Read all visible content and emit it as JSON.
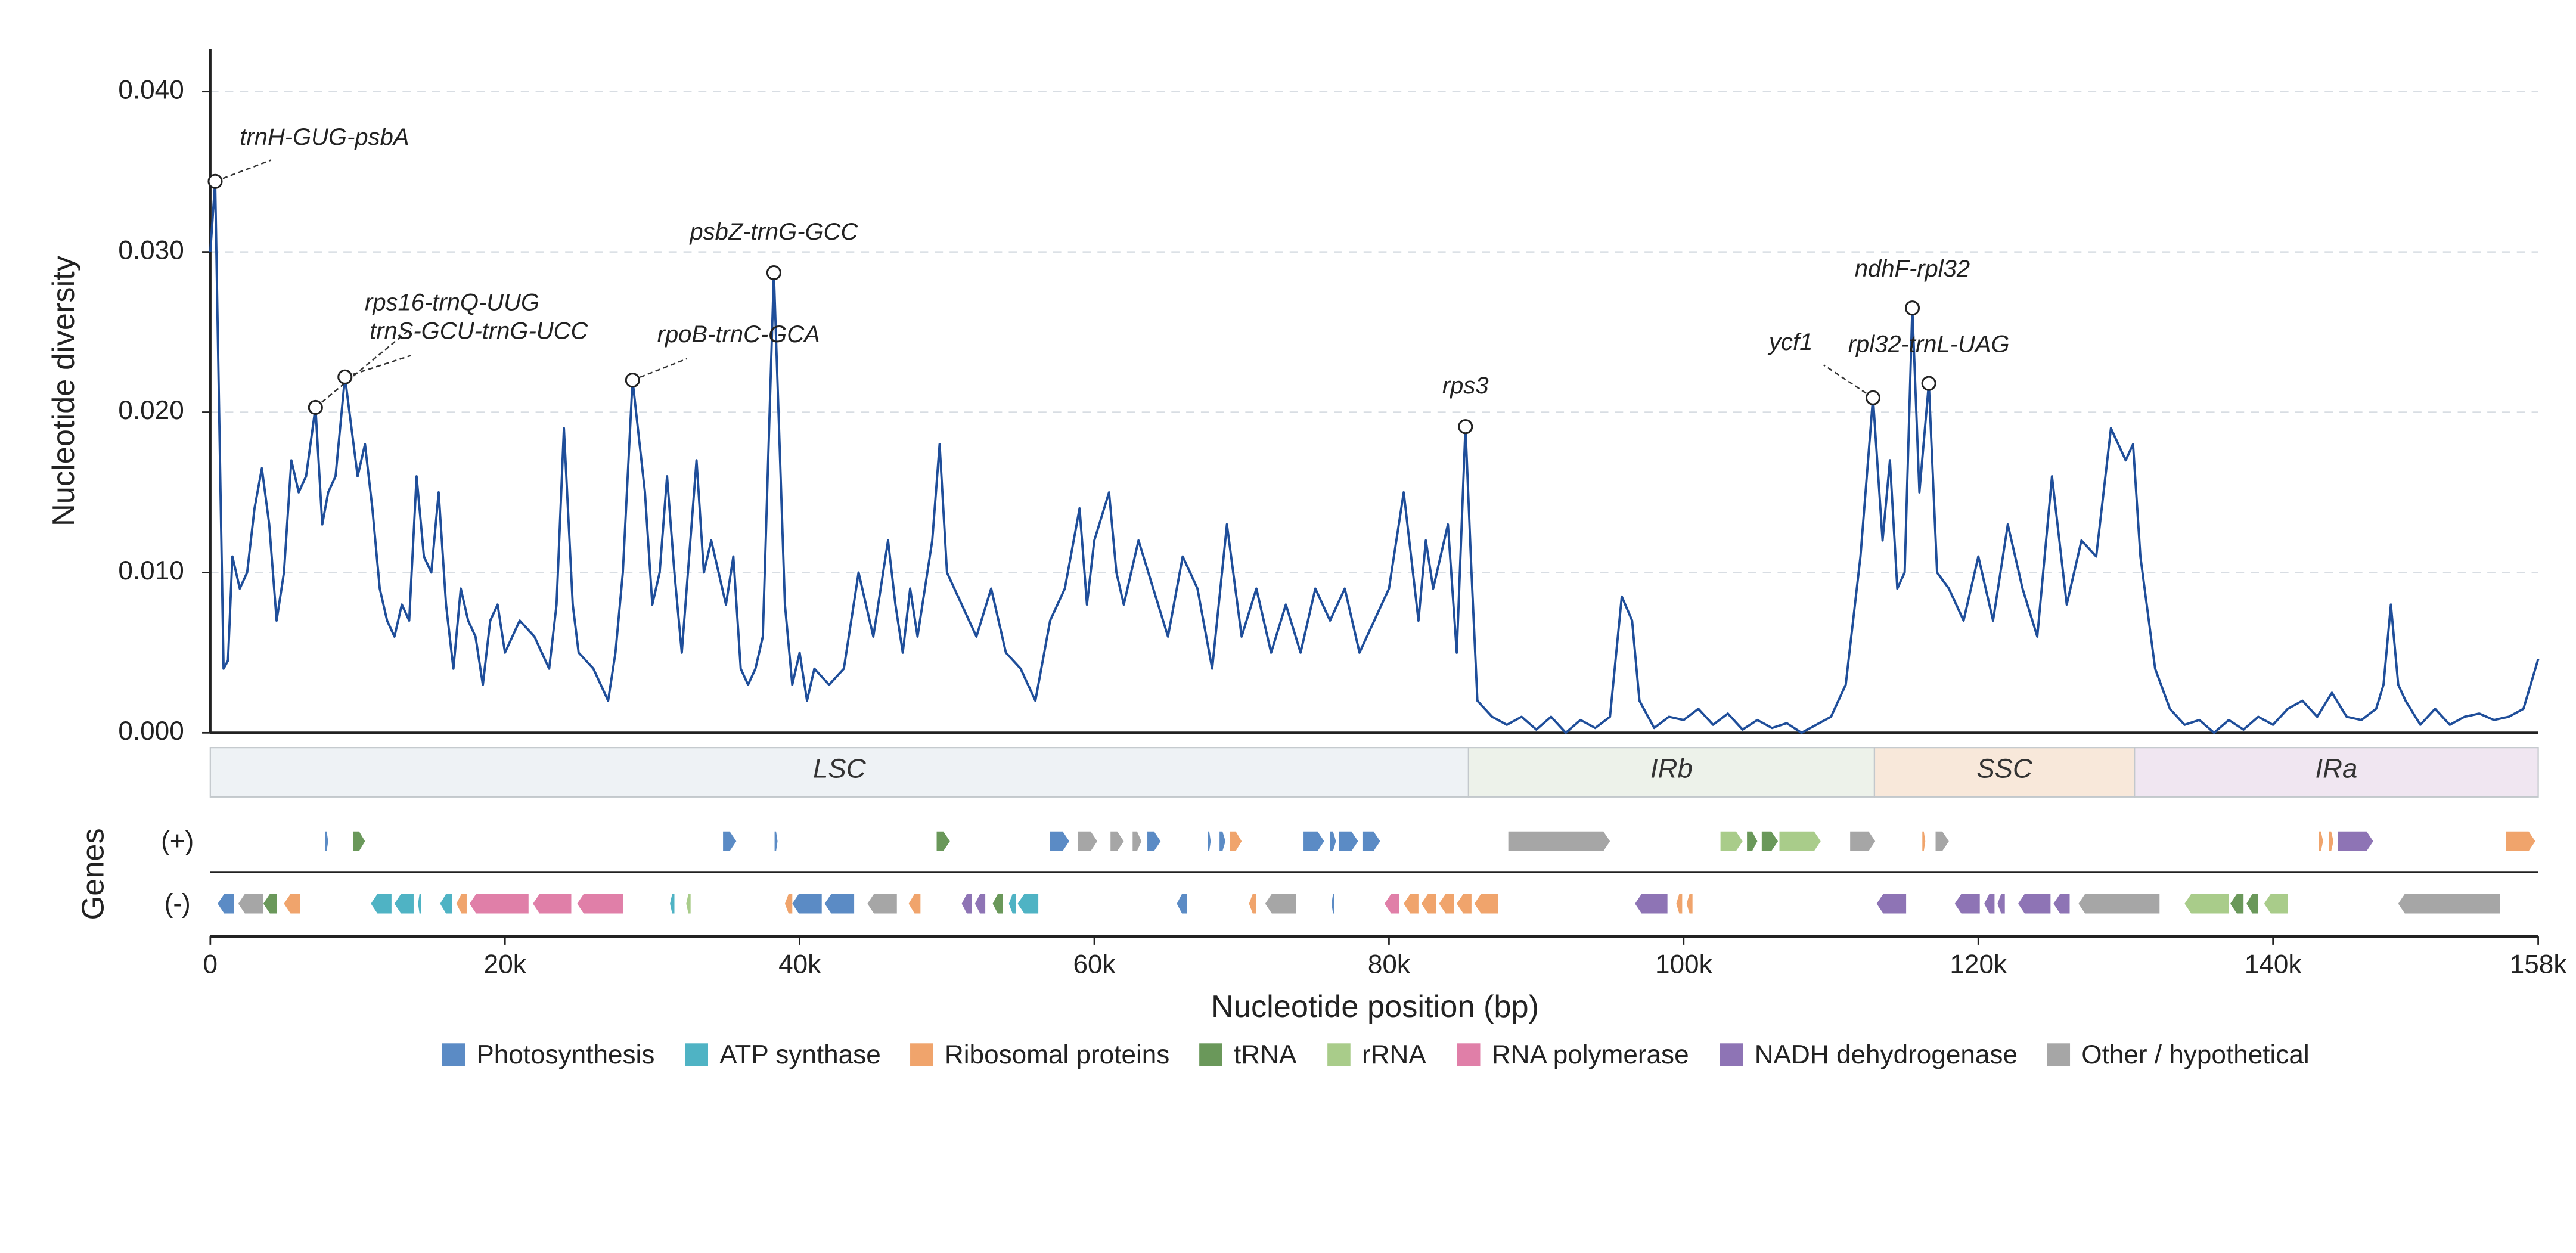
{
  "chart_data": {
    "type": "line",
    "ylabel": "Nucleotide diversity",
    "xlabel": "Nucleotide position (bp)",
    "xlim": [
      0,
      158000
    ],
    "ylim": [
      0,
      0.041
    ],
    "xticks": [
      {
        "value": 0,
        "label": "0"
      },
      {
        "value": 20000,
        "label": "20k"
      },
      {
        "value": 40000,
        "label": "40k"
      },
      {
        "value": 60000,
        "label": "60k"
      },
      {
        "value": 80000,
        "label": "80k"
      },
      {
        "value": 100000,
        "label": "100k"
      },
      {
        "value": 120000,
        "label": "120k"
      },
      {
        "value": 140000,
        "label": "140k"
      },
      {
        "value": 158000,
        "label": "158k"
      }
    ],
    "yticks": [
      {
        "value": 0,
        "label": "0.000"
      },
      {
        "value": 0.01,
        "label": "0.010"
      },
      {
        "value": 0.02,
        "label": "0.020"
      },
      {
        "value": 0.03,
        "label": "0.030"
      },
      {
        "value": 0.04,
        "label": "0.040"
      }
    ],
    "grid": true,
    "color": "#1f4e9a",
    "x": [
      0,
      330,
      900,
      1200,
      1500,
      2000,
      2500,
      3000,
      3500,
      4000,
      4500,
      5000,
      5500,
      6000,
      6500,
      7140,
      7600,
      8000,
      8500,
      9140,
      10000,
      10500,
      11000,
      11500,
      12000,
      12500,
      13000,
      13500,
      14000,
      14500,
      15000,
      15500,
      16000,
      16500,
      17000,
      17500,
      18000,
      18500,
      19000,
      19500,
      20000,
      21000,
      22000,
      23000,
      23500,
      24000,
      24600,
      25000,
      26000,
      27000,
      27500,
      28000,
      28660,
      29500,
      30000,
      30500,
      31000,
      31500,
      32000,
      33000,
      33500,
      34000,
      35000,
      35500,
      36000,
      36500,
      37000,
      37500,
      38250,
      39000,
      39500,
      40000,
      40500,
      41000,
      42000,
      43000,
      44000,
      45000,
      46000,
      46500,
      47000,
      47500,
      48000,
      49000,
      49500,
      50000,
      51000,
      52000,
      53000,
      54000,
      55000,
      56000,
      57000,
      58000,
      59000,
      59500,
      60000,
      61000,
      61500,
      62000,
      63000,
      64000,
      65000,
      66000,
      67000,
      68000,
      69000,
      70000,
      71000,
      72000,
      73000,
      74000,
      75000,
      76000,
      77000,
      78000,
      79000,
      80000,
      81000,
      82000,
      82500,
      83000,
      84000,
      84600,
      85190,
      85600,
      86000,
      87000,
      88000,
      89000,
      90000,
      91000,
      92000,
      93000,
      94000,
      95000,
      95800,
      96500,
      97000,
      98000,
      99000,
      100000,
      101000,
      102000,
      103000,
      104000,
      105000,
      106000,
      107000,
      108000,
      109000,
      110000,
      111000,
      112000,
      112850,
      113500,
      114000,
      114500,
      115000,
      115520,
      116000,
      116640,
      117200,
      118000,
      119000,
      120000,
      121000,
      122000,
      123000,
      124000,
      125000,
      126000,
      127000,
      128000,
      129000,
      130000,
      130500,
      131000,
      132000,
      133000,
      134000,
      135000,
      136000,
      137000,
      138000,
      139000,
      140000,
      141000,
      142000,
      143000,
      144000,
      145000,
      146000,
      147000,
      147500,
      148000,
      148500,
      149000,
      150000,
      151000,
      152000,
      153000,
      154000,
      155000,
      156000,
      157000,
      158000
    ],
    "values": [
      0.03,
      0.0344,
      0.004,
      0.0045,
      0.011,
      0.009,
      0.01,
      0.014,
      0.0165,
      0.013,
      0.007,
      0.01,
      0.017,
      0.015,
      0.016,
      0.0203,
      0.013,
      0.015,
      0.016,
      0.0222,
      0.016,
      0.018,
      0.014,
      0.009,
      0.007,
      0.006,
      0.008,
      0.007,
      0.016,
      0.011,
      0.01,
      0.015,
      0.008,
      0.004,
      0.009,
      0.007,
      0.006,
      0.003,
      0.007,
      0.008,
      0.005,
      0.007,
      0.006,
      0.004,
      0.008,
      0.019,
      0.008,
      0.005,
      0.004,
      0.002,
      0.005,
      0.01,
      0.022,
      0.015,
      0.008,
      0.01,
      0.016,
      0.01,
      0.005,
      0.017,
      0.01,
      0.012,
      0.008,
      0.011,
      0.004,
      0.003,
      0.004,
      0.006,
      0.0287,
      0.008,
      0.003,
      0.005,
      0.002,
      0.004,
      0.003,
      0.004,
      0.01,
      0.006,
      0.012,
      0.008,
      0.005,
      0.009,
      0.006,
      0.012,
      0.018,
      0.01,
      0.008,
      0.006,
      0.009,
      0.005,
      0.004,
      0.002,
      0.007,
      0.009,
      0.014,
      0.008,
      0.012,
      0.015,
      0.01,
      0.008,
      0.012,
      0.009,
      0.006,
      0.011,
      0.009,
      0.004,
      0.013,
      0.006,
      0.009,
      0.005,
      0.008,
      0.005,
      0.009,
      0.007,
      0.009,
      0.005,
      0.007,
      0.009,
      0.015,
      0.007,
      0.012,
      0.009,
      0.013,
      0.005,
      0.0191,
      0.01,
      0.002,
      0.001,
      0.0005,
      0.001,
      0.0002,
      0.001,
      0,
      0.0008,
      0.0003,
      0.001,
      0.0085,
      0.007,
      0.002,
      0.0003,
      0.001,
      0.0008,
      0.0015,
      0.0005,
      0.0012,
      0.0002,
      0.0008,
      0.0003,
      0.0006,
      0,
      0.0005,
      0.001,
      0.003,
      0.011,
      0.0209,
      0.012,
      0.017,
      0.009,
      0.01,
      0.0265,
      0.015,
      0.0218,
      0.01,
      0.009,
      0.007,
      0.011,
      0.007,
      0.013,
      0.009,
      0.006,
      0.016,
      0.008,
      0.012,
      0.011,
      0.019,
      0.017,
      0.018,
      0.011,
      0.004,
      0.0015,
      0.0005,
      0.0008,
      0,
      0.0008,
      0.0002,
      0.001,
      0.0005,
      0.0015,
      0.002,
      0.001,
      0.0025,
      0.001,
      0.0008,
      0.0015,
      0.003,
      0.008,
      0.003,
      0.002,
      0.0005,
      0.0015,
      0.0005,
      0.001,
      0.0012,
      0.0008,
      0.001,
      0.0015,
      0.0046
    ],
    "annotations": [
      {
        "text": "trnH-GUG-psbA",
        "x": 330,
        "y": 0.0344
      },
      {
        "text": "rps16-trnQ-UUG",
        "x": 7140,
        "y": 0.0203
      },
      {
        "text": "trnS-GCU-trnG-UCC",
        "x": 9140,
        "y": 0.0222
      },
      {
        "text": "psbZ-trnG-GCC",
        "x": 38250,
        "y": 0.0287
      },
      {
        "text": "rpoB-trnC-GCA",
        "x": 28660,
        "y": 0.022
      },
      {
        "text": "rps3",
        "x": 85190,
        "y": 0.0191
      },
      {
        "text": "ycf1",
        "x": 112850,
        "y": 0.0209
      },
      {
        "text": "ndhF-rpl32",
        "x": 115520,
        "y": 0.0265
      },
      {
        "text": "rpl32-trnL-UAG",
        "x": 116640,
        "y": 0.0218
      }
    ],
    "regions": [
      {
        "label": "LSC",
        "start": 0,
        "end": 85400,
        "color": "#eef2f5"
      },
      {
        "label": "IRb",
        "start": 85400,
        "end": 112950,
        "color": "#edf2ea"
      },
      {
        "label": "SSC",
        "start": 112950,
        "end": 130600,
        "color": "#f8e8da"
      },
      {
        "label": "IRa",
        "start": 130600,
        "end": 158000,
        "color": "#f0e6f1"
      }
    ],
    "gene_title": "Genes",
    "plus_label": "(+)",
    "minus_label": "(-)",
    "gene_categories": [
      {
        "name": "Photosynthesis",
        "color": "#5b8bc5"
      },
      {
        "name": "ATP synthase",
        "color": "#4fb3c4"
      },
      {
        "name": "Ribosomal proteins",
        "color": "#f0a46c"
      },
      {
        "name": "tRNA",
        "color": "#6a985a"
      },
      {
        "name": "rRNA",
        "color": "#a9cc8a"
      },
      {
        "name": "RNA polymerase",
        "color": "#e07fa8"
      },
      {
        "name": "NADH dehydrogenase",
        "color": "#8e74b5"
      },
      {
        "name": "Other / hypothetical",
        "color": "#a6a6a6"
      }
    ],
    "genes_plus": [
      [
        7800,
        8000,
        0
      ],
      [
        9700,
        10500,
        3
      ],
      [
        34800,
        35700,
        0
      ],
      [
        38300,
        38500,
        0
      ],
      [
        49300,
        50200,
        3
      ],
      [
        57000,
        58300,
        0
      ],
      [
        58900,
        60200,
        7
      ],
      [
        61100,
        62000,
        7
      ],
      [
        62600,
        63200,
        7
      ],
      [
        63600,
        64500,
        0
      ],
      [
        67700,
        67900,
        0
      ],
      [
        68500,
        68900,
        0
      ],
      [
        69200,
        70000,
        2
      ],
      [
        74200,
        75600,
        0
      ],
      [
        76000,
        76400,
        0
      ],
      [
        76600,
        77900,
        0
      ],
      [
        78200,
        79400,
        0
      ],
      [
        88100,
        95000,
        7
      ],
      [
        102500,
        104000,
        4
      ],
      [
        104300,
        105000,
        3
      ],
      [
        105300,
        106400,
        3
      ],
      [
        106500,
        109300,
        4
      ],
      [
        111300,
        113000,
        7
      ],
      [
        116200,
        116400,
        2
      ],
      [
        117100,
        118000,
        7
      ],
      [
        143100,
        143400,
        2
      ],
      [
        143800,
        144100,
        2
      ],
      [
        144400,
        146800,
        6
      ],
      [
        155800,
        157800,
        2
      ]
    ],
    "genes_minus": [
      [
        500,
        1600,
        0
      ],
      [
        1900,
        3600,
        7
      ],
      [
        3600,
        4500,
        3
      ],
      [
        5000,
        6100,
        2
      ],
      [
        10900,
        12300,
        1
      ],
      [
        12500,
        13800,
        1
      ],
      [
        14100,
        14300,
        1
      ],
      [
        15600,
        16400,
        1
      ],
      [
        16700,
        17400,
        2
      ],
      [
        17600,
        21600,
        5
      ],
      [
        21900,
        24500,
        5
      ],
      [
        24900,
        28000,
        5
      ],
      [
        31200,
        31500,
        1
      ],
      [
        32300,
        32600,
        4
      ],
      [
        39000,
        39500,
        2
      ],
      [
        39500,
        41500,
        0
      ],
      [
        41700,
        43700,
        0
      ],
      [
        44600,
        46600,
        7
      ],
      [
        47400,
        48200,
        2
      ],
      [
        51000,
        51700,
        6
      ],
      [
        51900,
        52600,
        6
      ],
      [
        53100,
        53800,
        3
      ],
      [
        54200,
        54700,
        1
      ],
      [
        54800,
        56200,
        1
      ],
      [
        65600,
        66300,
        0
      ],
      [
        70500,
        71000,
        2
      ],
      [
        71600,
        73700,
        7
      ],
      [
        76100,
        76300,
        0
      ],
      [
        79700,
        80700,
        5
      ],
      [
        81000,
        82000,
        2
      ],
      [
        82200,
        83200,
        2
      ],
      [
        83400,
        84400,
        2
      ],
      [
        84600,
        85600,
        2
      ],
      [
        85800,
        87400,
        2
      ],
      [
        96700,
        98900,
        6
      ],
      [
        99500,
        99900,
        2
      ],
      [
        100200,
        100600,
        2
      ],
      [
        113100,
        115100,
        6
      ],
      [
        118400,
        120100,
        6
      ],
      [
        120400,
        121100,
        6
      ],
      [
        121300,
        121800,
        6
      ],
      [
        122700,
        124900,
        6
      ],
      [
        125100,
        126200,
        6
      ],
      [
        126800,
        132300,
        7
      ],
      [
        134000,
        137000,
        4
      ],
      [
        137100,
        138000,
        3
      ],
      [
        138200,
        139000,
        3
      ],
      [
        139400,
        141000,
        4
      ],
      [
        148500,
        155400,
        7
      ]
    ]
  }
}
